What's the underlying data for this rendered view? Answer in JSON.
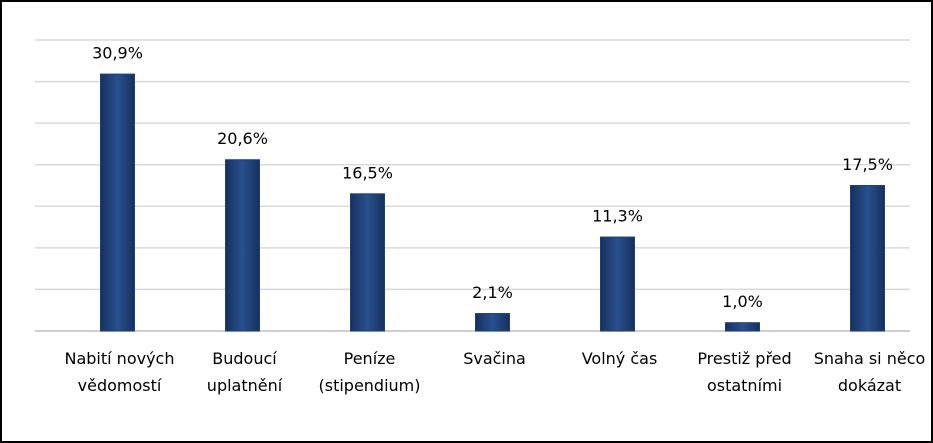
{
  "chart_data": {
    "type": "bar",
    "categories": [
      "Nabití nových vědomostí",
      "Budoucí uplatnění",
      "Peníze (stipendium)",
      "Svačina",
      "Volný čas",
      "Prestiž před ostatními",
      "Snaha si něco dokázat"
    ],
    "values": [
      30.9,
      20.6,
      16.5,
      2.1,
      11.3,
      1.0,
      17.5
    ],
    "value_labels": [
      "30,9%",
      "20,6%",
      "16,5%",
      "2,1%",
      "11,3%",
      "1,0%",
      "17,5%"
    ],
    "color": "#1f3f7a",
    "ylim": [
      0,
      35
    ],
    "yticks": [
      0,
      5,
      10,
      15,
      20,
      25,
      30,
      35
    ],
    "grid": true
  }
}
